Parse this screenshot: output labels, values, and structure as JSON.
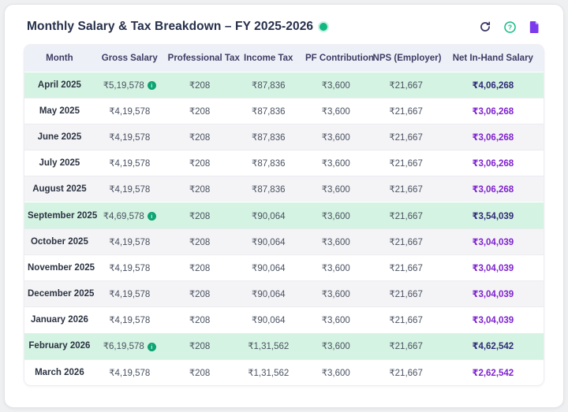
{
  "header": {
    "title": "Monthly Salary & Tax Breakdown – FY 2025-2026",
    "status_dot": "green",
    "actions": [
      {
        "name": "refresh",
        "icon": "refresh-icon"
      },
      {
        "name": "help",
        "icon": "question-circle-icon"
      },
      {
        "name": "export",
        "icon": "document-icon"
      }
    ]
  },
  "table": {
    "columns": [
      "Month",
      "Gross Salary",
      "Professional Tax",
      "Income Tax",
      "PF Contribution",
      "NPS (Employer)",
      "Net In-Hand Salary"
    ],
    "rows": [
      {
        "month": "April 2025",
        "gross": "₹5,19,578",
        "gross_info": true,
        "professional_tax": "₹208",
        "income_tax": "₹87,836",
        "pf": "₹3,600",
        "nps": "₹21,667",
        "net": "₹4,06,268",
        "highlighted": true
      },
      {
        "month": "May 2025",
        "gross": "₹4,19,578",
        "gross_info": false,
        "professional_tax": "₹208",
        "income_tax": "₹87,836",
        "pf": "₹3,600",
        "nps": "₹21,667",
        "net": "₹3,06,268",
        "highlighted": false
      },
      {
        "month": "June 2025",
        "gross": "₹4,19,578",
        "gross_info": false,
        "professional_tax": "₹208",
        "income_tax": "₹87,836",
        "pf": "₹3,600",
        "nps": "₹21,667",
        "net": "₹3,06,268",
        "highlighted": false
      },
      {
        "month": "July 2025",
        "gross": "₹4,19,578",
        "gross_info": false,
        "professional_tax": "₹208",
        "income_tax": "₹87,836",
        "pf": "₹3,600",
        "nps": "₹21,667",
        "net": "₹3,06,268",
        "highlighted": false
      },
      {
        "month": "August 2025",
        "gross": "₹4,19,578",
        "gross_info": false,
        "professional_tax": "₹208",
        "income_tax": "₹87,836",
        "pf": "₹3,600",
        "nps": "₹21,667",
        "net": "₹3,06,268",
        "highlighted": false
      },
      {
        "month": "September 2025",
        "gross": "₹4,69,578",
        "gross_info": true,
        "professional_tax": "₹208",
        "income_tax": "₹90,064",
        "pf": "₹3,600",
        "nps": "₹21,667",
        "net": "₹3,54,039",
        "highlighted": true
      },
      {
        "month": "October 2025",
        "gross": "₹4,19,578",
        "gross_info": false,
        "professional_tax": "₹208",
        "income_tax": "₹90,064",
        "pf": "₹3,600",
        "nps": "₹21,667",
        "net": "₹3,04,039",
        "highlighted": false
      },
      {
        "month": "November 2025",
        "gross": "₹4,19,578",
        "gross_info": false,
        "professional_tax": "₹208",
        "income_tax": "₹90,064",
        "pf": "₹3,600",
        "nps": "₹21,667",
        "net": "₹3,04,039",
        "highlighted": false
      },
      {
        "month": "December 2025",
        "gross": "₹4,19,578",
        "gross_info": false,
        "professional_tax": "₹208",
        "income_tax": "₹90,064",
        "pf": "₹3,600",
        "nps": "₹21,667",
        "net": "₹3,04,039",
        "highlighted": false
      },
      {
        "month": "January 2026",
        "gross": "₹4,19,578",
        "gross_info": false,
        "professional_tax": "₹208",
        "income_tax": "₹90,064",
        "pf": "₹3,600",
        "nps": "₹21,667",
        "net": "₹3,04,039",
        "highlighted": false
      },
      {
        "month": "February 2026",
        "gross": "₹6,19,578",
        "gross_info": true,
        "professional_tax": "₹208",
        "income_tax": "₹1,31,562",
        "pf": "₹3,600",
        "nps": "₹21,667",
        "net": "₹4,62,542",
        "highlighted": true
      },
      {
        "month": "March 2026",
        "gross": "₹4,19,578",
        "gross_info": false,
        "professional_tax": "₹208",
        "income_tax": "₹1,31,562",
        "pf": "₹3,600",
        "nps": "₹21,667",
        "net": "₹2,62,542",
        "highlighted": false
      }
    ]
  },
  "colors": {
    "highlight_row_bg": "#d5f3e2",
    "stripe_row_bg": "#f4f4f6",
    "header_row_bg": "#eef0f8",
    "net_regular": "#7e22ce",
    "net_highlight": "#2f2b77",
    "accent_green": "#10b981",
    "accent_purple": "#7c3aed"
  }
}
